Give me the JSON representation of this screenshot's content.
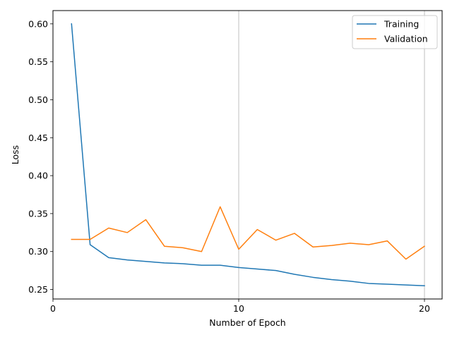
{
  "chart_data": {
    "type": "line",
    "title": "",
    "xlabel": "Number of Epoch",
    "ylabel": "Loss",
    "xlim": [
      0,
      20.95
    ],
    "ylim": [
      0.2375,
      0.6175
    ],
    "x_ticks": [
      0,
      10,
      20
    ],
    "x_tick_labels": [
      "0",
      "10",
      "20"
    ],
    "y_ticks": [
      0.25,
      0.3,
      0.35,
      0.4,
      0.45,
      0.5,
      0.55,
      0.6
    ],
    "y_tick_labels": [
      "0.25",
      "0.30",
      "0.35",
      "0.40",
      "0.45",
      "0.50",
      "0.55",
      "0.60"
    ],
    "grid": "x-axis at major ticks",
    "legend_position": "top-right",
    "x": [
      1,
      2,
      3,
      4,
      5,
      6,
      7,
      8,
      9,
      10,
      11,
      12,
      13,
      14,
      15,
      16,
      17,
      18,
      19,
      20
    ],
    "series": [
      {
        "name": "Training",
        "color": "#1f77b4",
        "values": [
          0.6,
          0.309,
          0.292,
          0.289,
          0.287,
          0.285,
          0.284,
          0.282,
          0.282,
          0.279,
          0.277,
          0.275,
          0.27,
          0.266,
          0.263,
          0.261,
          0.258,
          0.257,
          0.256,
          0.255
        ]
      },
      {
        "name": "Validation",
        "color": "#ff7f0e",
        "values": [
          0.316,
          0.316,
          0.331,
          0.325,
          0.342,
          0.307,
          0.305,
          0.3,
          0.359,
          0.303,
          0.329,
          0.315,
          0.324,
          0.306,
          0.308,
          0.311,
          0.309,
          0.314,
          0.29,
          0.307
        ]
      }
    ]
  }
}
